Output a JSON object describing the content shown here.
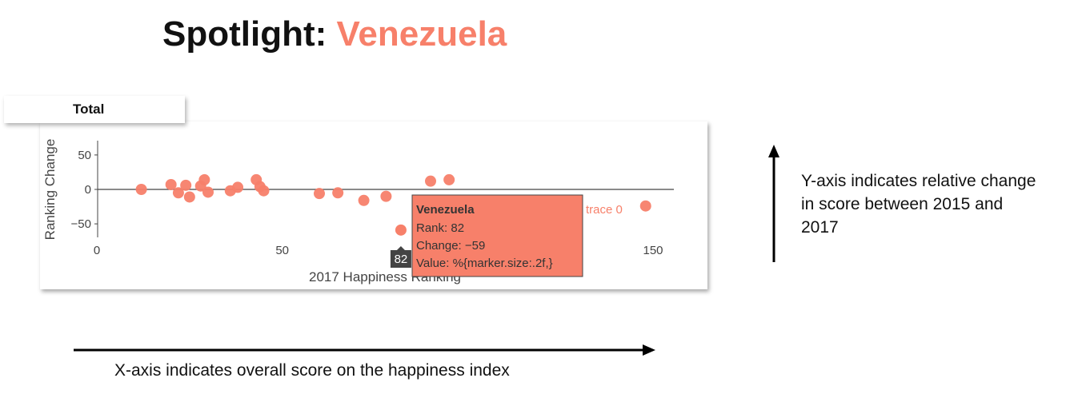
{
  "title": {
    "prefix": "Spotlight: ",
    "country": "Venezuela"
  },
  "menu": {
    "selected": "Total"
  },
  "colors": {
    "accent": "#f7806a",
    "tooltip_bg": "#f7806a",
    "hover_label_bg": "#444444",
    "axis": "#444444"
  },
  "annotations": {
    "y_note": "Y-axis indicates relative change in score between 2015 and 2017",
    "x_note": "X-axis indicates overall score on the happiness index"
  },
  "tooltip": {
    "header": "Venezuela",
    "lines": [
      "Rank: 82",
      "Change: −59",
      "Value: %{marker.size:.2f,}"
    ],
    "trace_label": "trace 0",
    "x_hover_label": "82"
  },
  "chart_data": {
    "type": "scatter",
    "xlabel": "2017 Happiness Ranking",
    "ylabel": "Ranking Change",
    "xlim": [
      0,
      150
    ],
    "ylim": [
      -60,
      60
    ],
    "x_ticks": [
      "0",
      "50",
      "150"
    ],
    "y_ticks": [
      "50",
      "0",
      "−50"
    ],
    "grid": false,
    "x": [
      12,
      20,
      22,
      24,
      25,
      28,
      29,
      30,
      36,
      38,
      43,
      44,
      45,
      60,
      65,
      72,
      78,
      82,
      90,
      95,
      148
    ],
    "y": [
      0,
      7,
      -5,
      6,
      -11,
      5,
      14,
      -4,
      -2,
      3,
      14,
      4,
      -2,
      -6,
      -5,
      -16,
      -10,
      -59,
      12,
      14,
      -24
    ],
    "highlight": {
      "name": "Venezuela",
      "x": 82,
      "y": -59
    }
  }
}
